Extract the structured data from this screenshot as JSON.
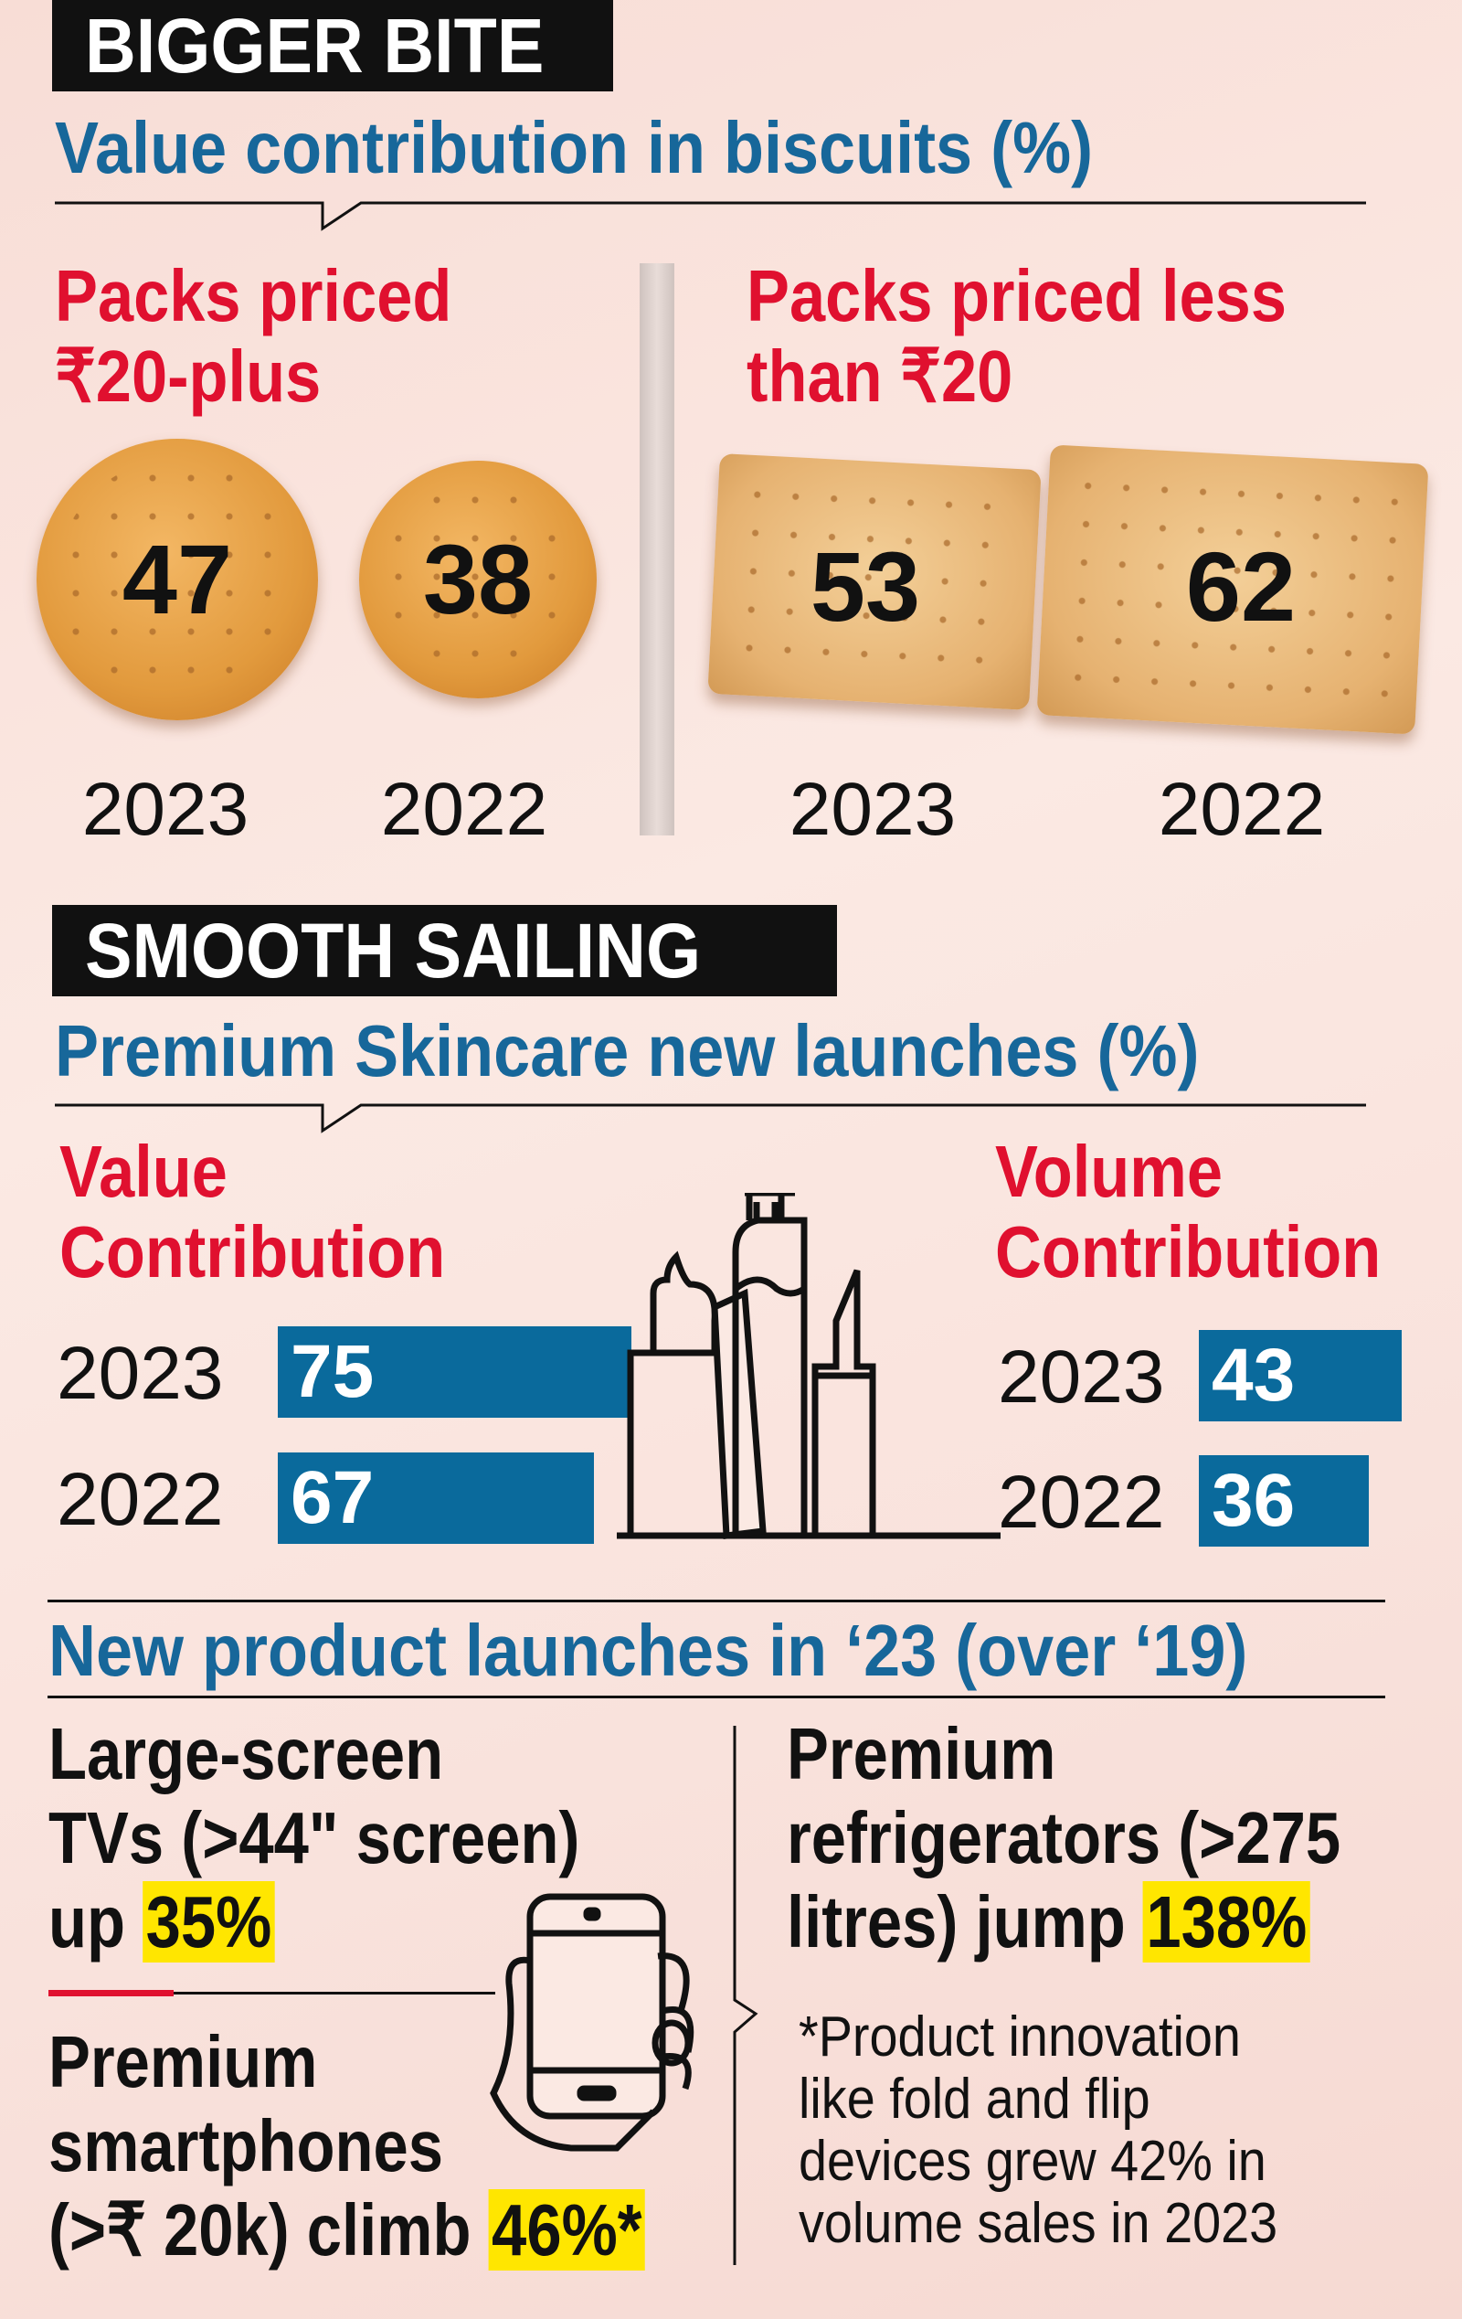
{
  "section1": {
    "heading": "BIGGER BITE",
    "subtitle": "Value contribution in biscuits (%)",
    "left_label_line1": "Packs priced",
    "left_label_line2": "₹20-plus",
    "right_label_line1": "Packs priced less",
    "right_label_line2": "than ₹20",
    "left_values": [
      {
        "year": "2023",
        "value": "47"
      },
      {
        "year": "2022",
        "value": "38"
      }
    ],
    "right_values": [
      {
        "year": "2023",
        "value": "53"
      },
      {
        "year": "2022",
        "value": "62"
      }
    ]
  },
  "section2": {
    "heading": "SMOOTH SAILING",
    "subtitle": "Premium Skincare new launches (%)",
    "value_label_line1": "Value",
    "value_label_line2": "Contribution",
    "volume_label_line1": "Volume",
    "volume_label_line2": "Contribution",
    "icon": "cosmetics-icon"
  },
  "section3": {
    "subtitle": "New product launches in ‘23 (over ‘19)",
    "tv_line1": "Large-screen",
    "tv_line2": "TVs (>44\" screen)",
    "tv_line3": "up",
    "tv_highlight": "35%",
    "phone_line1": "Premium",
    "phone_line2": "smartphones",
    "phone_line3": "(>₹ 20k) climb",
    "phone_highlight": "46%*",
    "fridge_line1": "Premium",
    "fridge_line2": "refrigerators (>275",
    "fridge_line3": "litres) jump",
    "fridge_highlight": "138%",
    "footnote": [
      "*Product innovation",
      "like fold and flip",
      "devices grew 42% in",
      "volume sales in 2023"
    ],
    "icon": "smartphone-in-hand-icon"
  },
  "colors": {
    "subtitle_blue": "#17679a",
    "label_red": "#e0102f",
    "bar_blue": "#0a6a9c",
    "highlight_yellow": "#ffe600"
  },
  "chart_data": [
    {
      "type": "bar",
      "title": "Value contribution in biscuits (%)",
      "categories": [
        "2023",
        "2022"
      ],
      "series": [
        {
          "name": "Packs priced ₹20-plus",
          "values": [
            47,
            38
          ]
        },
        {
          "name": "Packs priced less than ₹20",
          "values": [
            53,
            62
          ]
        }
      ]
    },
    {
      "type": "bar",
      "title": "Premium Skincare new launches (%)",
      "categories": [
        "2023",
        "2022"
      ],
      "series": [
        {
          "name": "Value Contribution",
          "values": [
            75,
            67
          ]
        },
        {
          "name": "Volume Contribution",
          "values": [
            43,
            36
          ]
        }
      ]
    }
  ]
}
